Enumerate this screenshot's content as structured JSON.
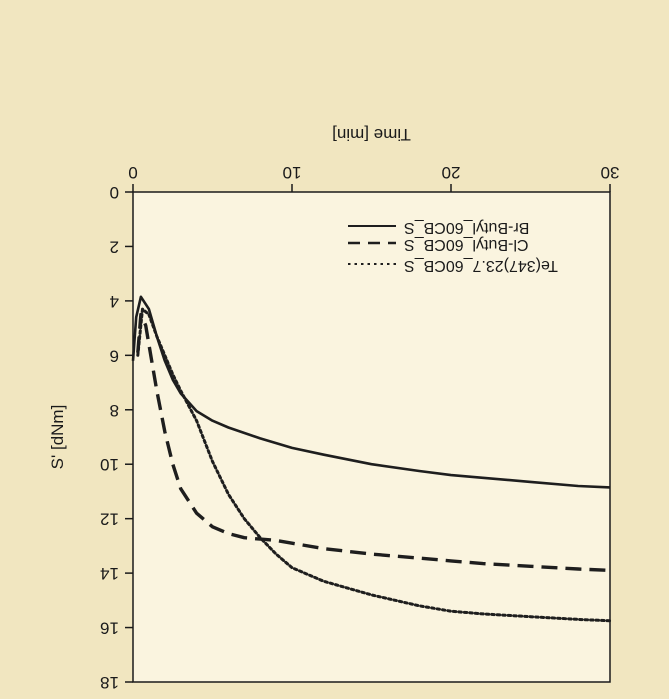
{
  "chart_data": {
    "type": "line",
    "title": "",
    "xlabel": "Time [min]",
    "ylabel": "S' [dNm]",
    "xlim": [
      0,
      30
    ],
    "ylim": [
      0,
      18
    ],
    "x_ticks": [
      "0",
      "10",
      "20",
      "30"
    ],
    "y_ticks": [
      "0",
      "2",
      "4",
      "6",
      "8",
      "10",
      "12",
      "14",
      "16",
      "18"
    ],
    "x_axis_position": "top",
    "y_axis_inverted": true,
    "text_rendering": "rotated 180 degrees",
    "legend_position": "top-right",
    "series": [
      {
        "name": "Br-Butyl_60CB_S",
        "style": "solid",
        "x": [
          0,
          0.2,
          0.5,
          1,
          1.5,
          2,
          2.5,
          3,
          4,
          5,
          6,
          8,
          10,
          12,
          15,
          18,
          20,
          22,
          25,
          28,
          30
        ],
        "y": [
          6.2,
          4.6,
          3.85,
          4.3,
          5.3,
          6.2,
          6.9,
          7.4,
          8.05,
          8.4,
          8.65,
          9.05,
          9.4,
          9.65,
          10.0,
          10.25,
          10.4,
          10.5,
          10.65,
          10.8,
          10.85
        ]
      },
      {
        "name": "Cl-Butyl_60CB_S",
        "style": "dashed",
        "x": [
          0.3,
          0.5,
          0.8,
          1,
          1.5,
          2,
          2.5,
          3,
          4,
          5,
          6,
          7,
          8,
          9,
          10,
          12,
          15,
          18,
          20,
          22,
          25,
          28,
          30
        ],
        "y": [
          5.9,
          4.5,
          4.9,
          5.6,
          7.3,
          8.8,
          10.0,
          10.9,
          11.8,
          12.3,
          12.55,
          12.7,
          12.75,
          12.8,
          12.9,
          13.1,
          13.3,
          13.45,
          13.55,
          13.65,
          13.75,
          13.85,
          13.9
        ]
      },
      {
        "name": "Te(347)23.7_60CB_S",
        "style": "dotted",
        "x": [
          0.3,
          0.6,
          1,
          1.5,
          2,
          2.5,
          3,
          4,
          5,
          6,
          7,
          8,
          9,
          10,
          12,
          15,
          18,
          20,
          22,
          25,
          28,
          30
        ],
        "y": [
          6.0,
          4.3,
          4.5,
          5.3,
          6.0,
          6.7,
          7.3,
          8.4,
          9.9,
          11.1,
          12.0,
          12.7,
          13.3,
          13.8,
          14.3,
          14.8,
          15.2,
          15.4,
          15.5,
          15.6,
          15.7,
          15.75
        ]
      }
    ]
  }
}
